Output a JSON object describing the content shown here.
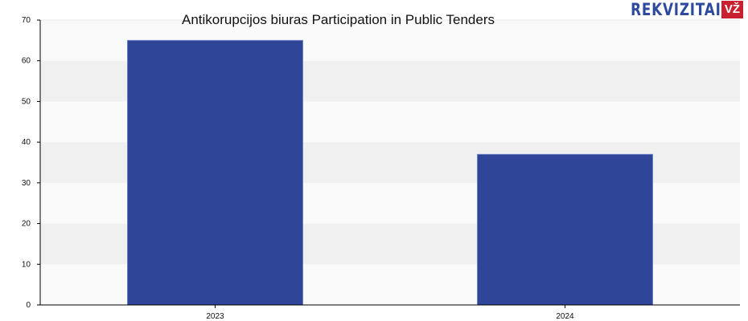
{
  "chart_data": {
    "type": "bar",
    "title": "Antikorupcijos biuras Participation in Public Tenders",
    "categories": [
      "2023",
      "2024"
    ],
    "values": [
      65,
      37
    ],
    "xlabel": "",
    "ylabel": "",
    "ylim": [
      0,
      70
    ],
    "yticks": [
      0,
      10,
      20,
      30,
      40,
      50,
      60,
      70
    ],
    "grid": "horizontal alternating bands",
    "bar_color": "#2e4598",
    "legend": "none"
  },
  "logo": {
    "text": "REKVIZITAI",
    "badge": "VŽ"
  }
}
